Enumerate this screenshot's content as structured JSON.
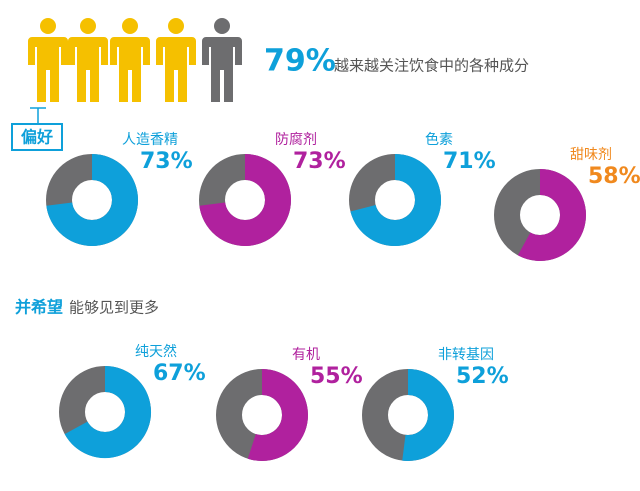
{
  "header": {
    "percent": "79%",
    "text": "越来越关注饮食中的各种成分"
  },
  "preference": {
    "label": "偏好",
    "items": [
      {
        "name": "人造香精",
        "value": 73,
        "value_label": "73%",
        "color": "#0ea0da",
        "label_color": "#0ea0da"
      },
      {
        "name": "防腐剂",
        "value": 73,
        "value_label": "73%",
        "color": "#b0219e",
        "label_color": "#b0219e"
      },
      {
        "name": "色素",
        "value": 71,
        "value_label": "71%",
        "color": "#0ea0da",
        "label_color": "#0ea0da"
      },
      {
        "name": "甜味剂",
        "value": 58,
        "value_label": "58%",
        "color": "#b0219e",
        "label_color": "#f0891e"
      }
    ]
  },
  "hope": {
    "label_bold": "并希望",
    "label": "能够见到更多",
    "items": [
      {
        "name": "纯天然",
        "value": 67,
        "value_label": "67%",
        "color": "#0ea0da",
        "label_color": "#0ea0da"
      },
      {
        "name": "有机",
        "value": 55,
        "value_label": "55%",
        "color": "#b0219e",
        "label_color": "#b0219e"
      },
      {
        "name": "非转基因",
        "value": 52,
        "value_label": "52%",
        "color": "#0ea0da",
        "label_color": "#0ea0da"
      }
    ]
  }
}
